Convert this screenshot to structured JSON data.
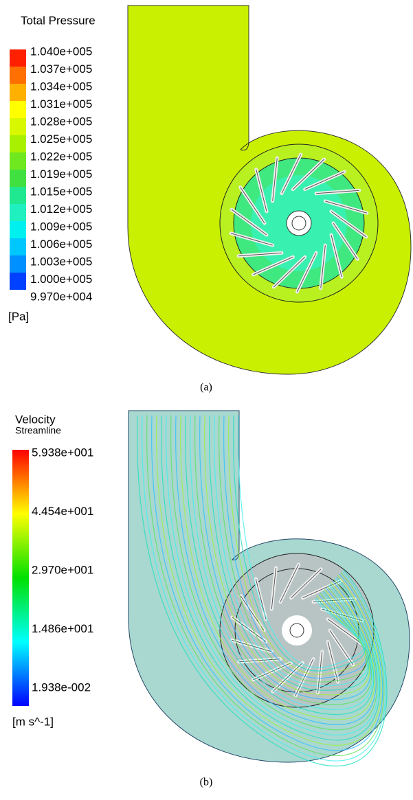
{
  "panels": [
    {
      "title": "Total Pressure",
      "legend_labels": [
        "1.040e+005",
        "1.037e+005",
        "1.034e+005",
        "1.031e+005",
        "1.028e+005",
        "1.025e+005",
        "1.022e+005",
        "1.019e+005",
        "1.015e+005",
        "1.012e+005",
        "1.009e+005",
        "1.006e+005",
        "1.003e+005",
        "1.000e+005",
        "9.970e+004"
      ],
      "unit": "[Pa]",
      "caption": "(a)"
    },
    {
      "title": "Velocity",
      "subtitle": "Streamline",
      "legend_labels": [
        "5.938e+001",
        "4.454e+001",
        "2.970e+001",
        "1.486e+001",
        "1.938e-002"
      ],
      "unit": "[m s^-1]",
      "caption": "(b)"
    }
  ]
}
